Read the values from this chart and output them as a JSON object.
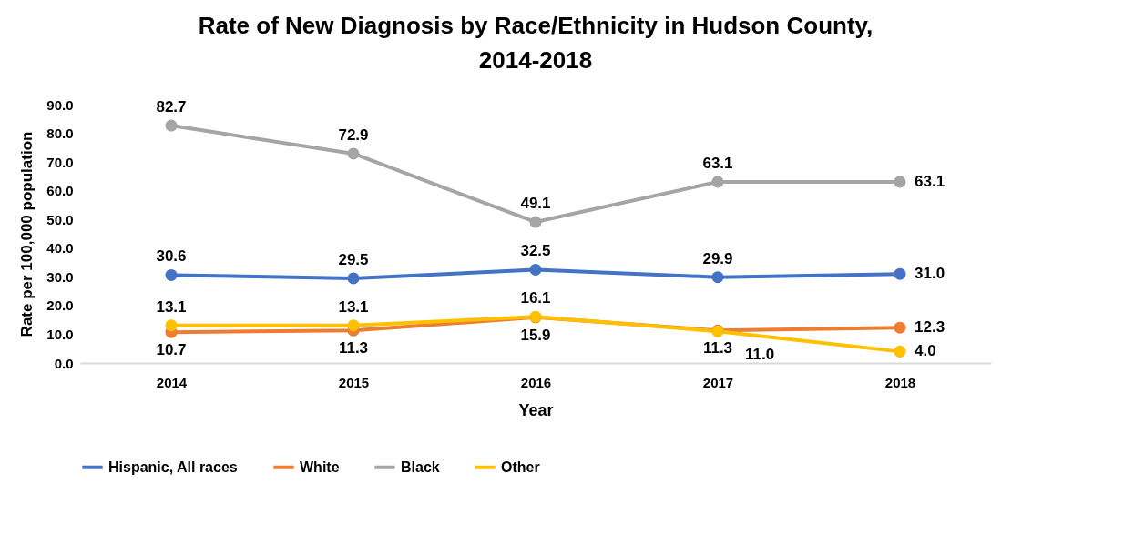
{
  "chart_data": {
    "type": "line",
    "title": "Rate of New Diagnosis by Race/Ethnicity in Hudson County, 2014-2018",
    "xlabel": "Year",
    "ylabel": "Rate per 100,000 population",
    "categories": [
      "2014",
      "2015",
      "2016",
      "2017",
      "2018"
    ],
    "series": [
      {
        "name": "Hispanic, All races",
        "color": "#4472c4",
        "values": [
          30.6,
          29.5,
          32.5,
          29.9,
          31.0
        ],
        "value_labels": [
          "30.6",
          "29.5",
          "32.5",
          "29.9",
          "31.0"
        ]
      },
      {
        "name": "White",
        "color": "#ed7d31",
        "values": [
          10.7,
          11.3,
          15.9,
          11.3,
          12.3
        ],
        "value_labels": [
          "10.7",
          "11.3",
          "15.9",
          "11.3",
          "12.3"
        ]
      },
      {
        "name": "Black",
        "color": "#a5a5a5",
        "values": [
          82.7,
          72.9,
          49.1,
          63.1,
          63.1
        ],
        "value_labels": [
          "82.7",
          "72.9",
          "49.1",
          "63.1",
          "63.1"
        ]
      },
      {
        "name": "Other",
        "color": "#ffc000",
        "values": [
          13.1,
          13.1,
          16.1,
          11.0,
          4.0
        ],
        "value_labels": [
          "13.1",
          "13.1",
          "16.1",
          "11.0",
          "4.0"
        ]
      }
    ],
    "ylim": [
      0,
      90
    ],
    "yticks": [
      {
        "value": 0,
        "label": "0.0"
      },
      {
        "value": 10,
        "label": "10.0"
      },
      {
        "value": 20,
        "label": "20.0"
      },
      {
        "value": 30,
        "label": "30.0"
      },
      {
        "value": 40,
        "label": "40.0"
      },
      {
        "value": 50,
        "label": "50.0"
      },
      {
        "value": 60,
        "label": "60.0"
      },
      {
        "value": 70,
        "label": "70.0"
      },
      {
        "value": 80,
        "label": "80.0"
      },
      {
        "value": 90,
        "label": "90.0"
      }
    ],
    "legend": "bottom",
    "marker": "circle",
    "line_style": "solid"
  }
}
